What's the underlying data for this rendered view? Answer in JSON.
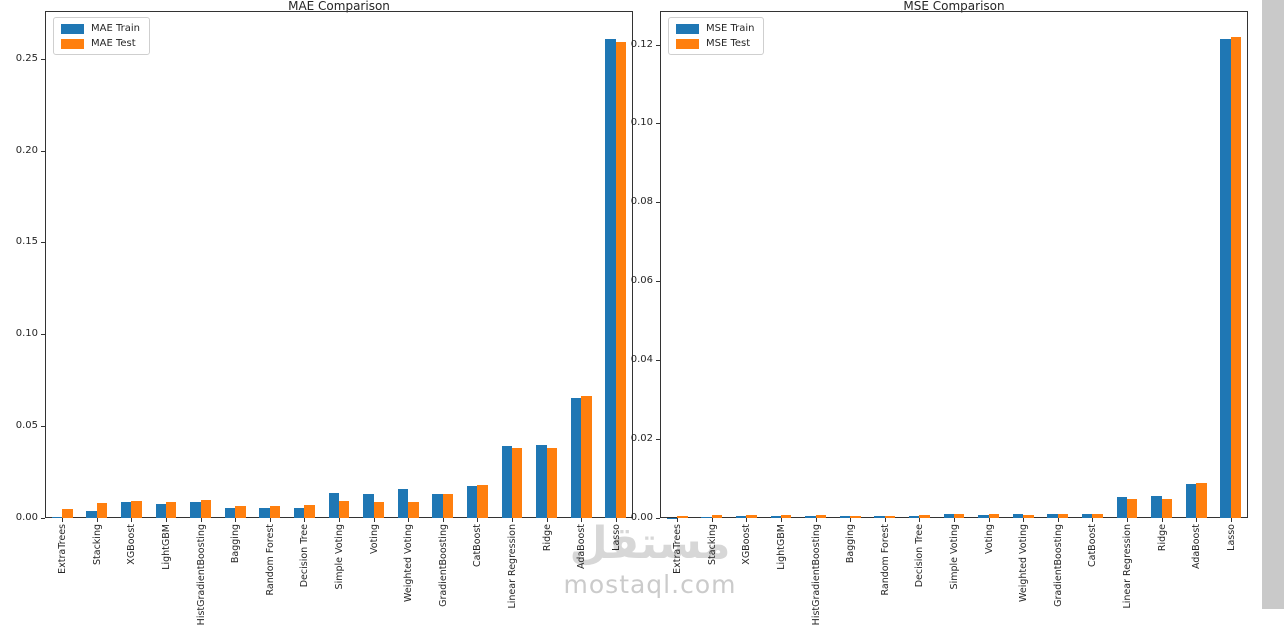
{
  "figure": {
    "background": "#ffffff",
    "spine_color": "#333333"
  },
  "watermark": {
    "arabic": "مستقل",
    "latin": "mostaql.com"
  },
  "chart_data": [
    {
      "type": "bar",
      "title": "MAE Comparison",
      "xlabel": "",
      "ylabel": "",
      "grid": false,
      "legend_position": "upper left",
      "ylim": [
        0,
        0.276
      ],
      "y_ticks": [
        0,
        0.05,
        0.1,
        0.15,
        0.2,
        0.25
      ],
      "y_tick_labels": [
        "0.00",
        "0.05",
        "0.10",
        "0.15",
        "0.20",
        "0.25"
      ],
      "categories": [
        "ExtraTrees",
        "Stacking",
        "XGBoost",
        "LightGBM",
        "HistGradientBoosting",
        "Bagging",
        "Random Forest",
        "Decision Tree",
        "Simple Voting",
        "Voting",
        "Weighted Voting",
        "GradientBoosting",
        "CatBoost",
        "Linear Regression",
        "Ridge",
        "AdaBoost",
        "Lasso"
      ],
      "series": [
        {
          "name": "MAE Train",
          "color": "#1f77b4",
          "values": [
            0.0005,
            0.004,
            0.0085,
            0.0074,
            0.0087,
            0.0056,
            0.0054,
            0.0056,
            0.0134,
            0.0132,
            0.0159,
            0.0129,
            0.0172,
            0.039,
            0.0395,
            0.0655,
            0.261
          ]
        },
        {
          "name": "MAE Test",
          "color": "#ff7f0e",
          "values": [
            0.0047,
            0.0083,
            0.0091,
            0.0085,
            0.0096,
            0.0065,
            0.0067,
            0.0069,
            0.0091,
            0.0085,
            0.0087,
            0.0132,
            0.0179,
            0.0381,
            0.0379,
            0.0665,
            0.259
          ]
        }
      ]
    },
    {
      "type": "bar",
      "title": "MSE Comparison",
      "xlabel": "",
      "ylabel": "",
      "grid": false,
      "legend_position": "upper left",
      "ylim": [
        0,
        0.1285
      ],
      "y_ticks": [
        0,
        0.02,
        0.04,
        0.06,
        0.08,
        0.1,
        0.12
      ],
      "y_tick_labels": [
        "0.00",
        "0.02",
        "0.04",
        "0.06",
        "0.08",
        "0.10",
        "0.12"
      ],
      "categories": [
        "ExtraTrees",
        "Stacking",
        "XGBoost",
        "LightGBM",
        "HistGradientBoosting",
        "Bagging",
        "Random Forest",
        "Decision Tree",
        "Simple Voting",
        "Voting",
        "Weighted Voting",
        "GradientBoosting",
        "CatBoost",
        "Linear Regression",
        "Ridge",
        "AdaBoost",
        "Lasso"
      ],
      "series": [
        {
          "name": "MSE Train",
          "color": "#1f77b4",
          "values": [
            4e-05,
            0.0002,
            0.0005,
            0.0005,
            0.0005,
            0.0004,
            0.0004,
            0.0005,
            0.0009,
            0.0007,
            0.0011,
            0.0011,
            0.0011,
            0.0054,
            0.0055,
            0.0086,
            0.1214
          ]
        },
        {
          "name": "MSE Test",
          "color": "#ff7f0e",
          "values": [
            0.0004,
            0.0007,
            0.0007,
            0.0007,
            0.0007,
            0.0006,
            0.0006,
            0.0007,
            0.0011,
            0.0009,
            0.0008,
            0.0011,
            0.0011,
            0.0048,
            0.0048,
            0.0089,
            0.1218
          ]
        }
      ]
    }
  ]
}
